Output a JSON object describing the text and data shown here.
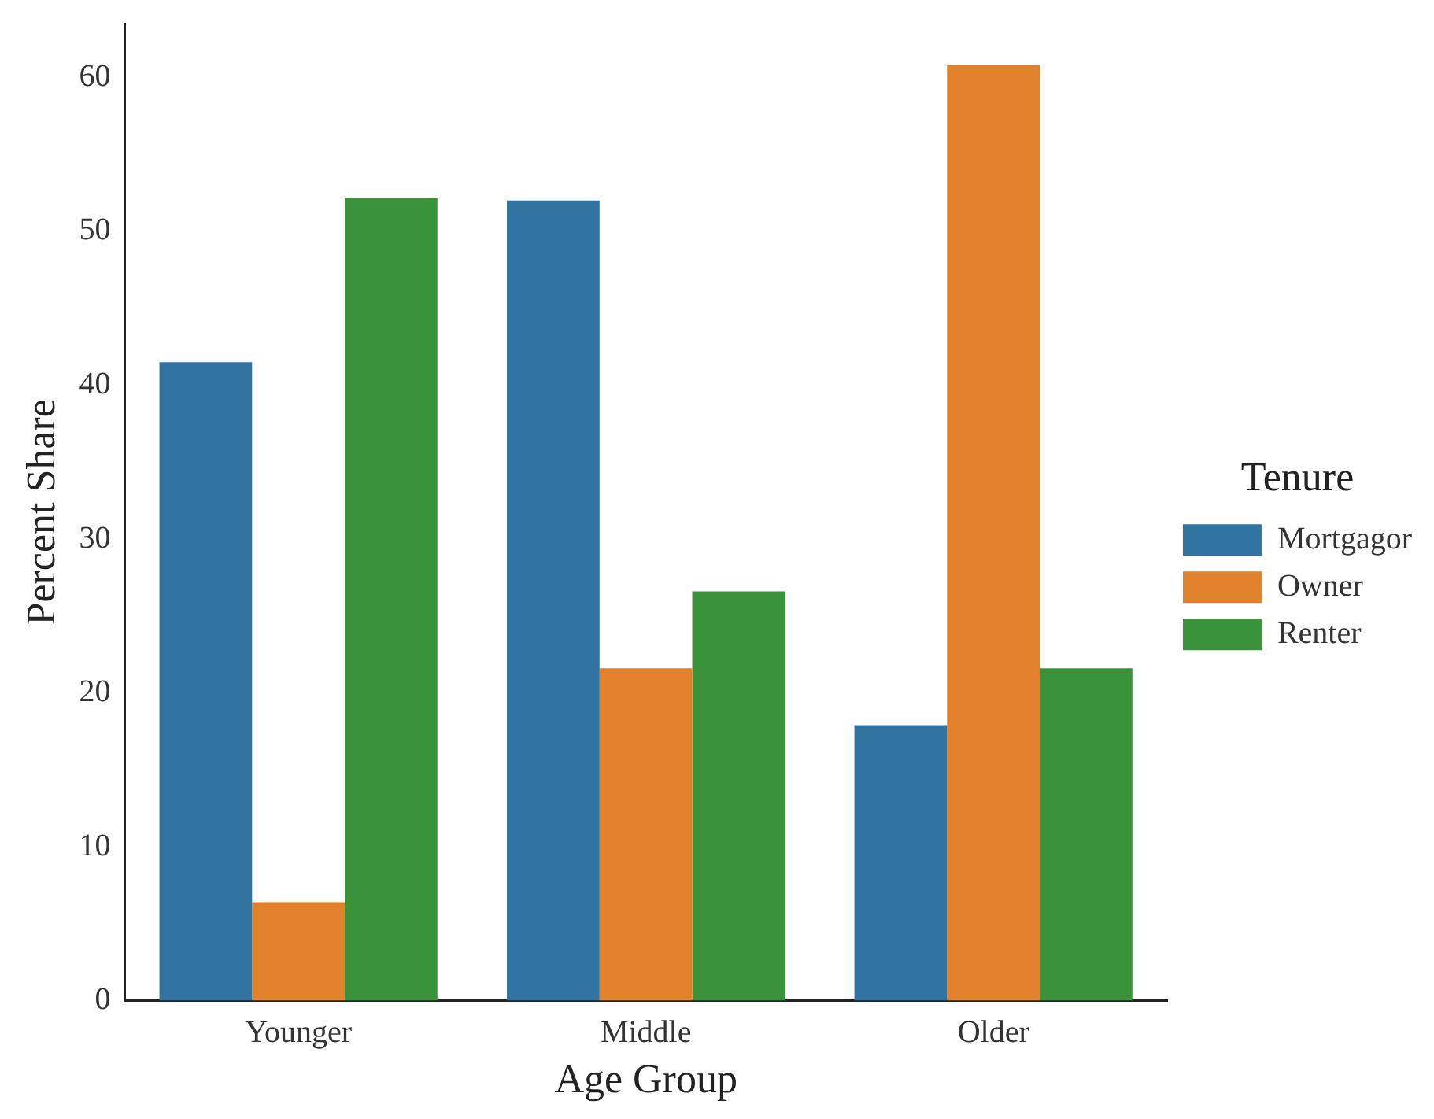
{
  "chart_data": {
    "type": "bar",
    "xlabel": "Age Group",
    "ylabel": "Percent Share",
    "legend_title": "Tenure",
    "legend": "right",
    "categories": [
      "Younger",
      "Middle",
      "Older"
    ],
    "series": [
      {
        "name": "Mortgagor",
        "color": "#3274a1",
        "values": [
          41.5,
          52.0,
          17.9
        ]
      },
      {
        "name": "Owner",
        "color": "#e1812c",
        "values": [
          6.4,
          21.6,
          60.8
        ]
      },
      {
        "name": "Renter",
        "color": "#3a923a",
        "values": [
          52.2,
          26.6,
          21.6
        ]
      }
    ],
    "ylim": [
      0,
      63.5
    ],
    "yticks": [
      0,
      10,
      20,
      30,
      40,
      50,
      60
    ],
    "grid": false
  }
}
